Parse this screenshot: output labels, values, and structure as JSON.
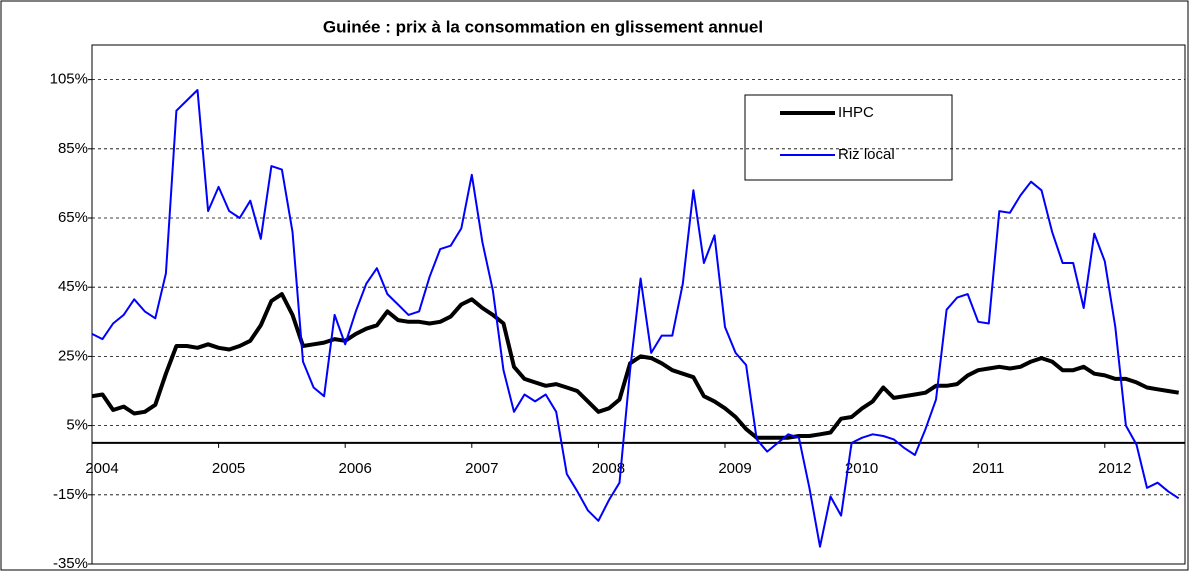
{
  "chart_data": {
    "type": "line",
    "title": "Guinée : prix à la consommation en glissement annuel",
    "categories": [
      "2004",
      null,
      null,
      null,
      null,
      null,
      null,
      null,
      null,
      null,
      null,
      null,
      "2005",
      null,
      null,
      null,
      null,
      null,
      null,
      null,
      null,
      null,
      null,
      null,
      "2006",
      null,
      null,
      null,
      null,
      null,
      null,
      null,
      null,
      null,
      null,
      null,
      "2007",
      null,
      null,
      null,
      null,
      null,
      null,
      null,
      null,
      null,
      null,
      null,
      "2008",
      null,
      null,
      null,
      null,
      null,
      null,
      null,
      null,
      null,
      null,
      null,
      "2009",
      null,
      null,
      null,
      null,
      null,
      null,
      null,
      null,
      null,
      null,
      null,
      "2010",
      null,
      null,
      null,
      null,
      null,
      null,
      null,
      null,
      null,
      null,
      null,
      "2011",
      null,
      null,
      null,
      null,
      null,
      null,
      null,
      null,
      null,
      null,
      null,
      "2012",
      null,
      null,
      null,
      null,
      null,
      null,
      null
    ],
    "series": [
      {
        "name": "IHPC",
        "color": "#000000",
        "width": 4,
        "values": [
          13.5,
          14,
          9.5,
          10.5,
          8.5,
          9,
          11,
          20,
          28,
          28,
          27.5,
          28.5,
          27.5,
          27,
          28,
          29.5,
          34,
          41,
          43,
          37,
          28,
          28.5,
          29,
          30,
          29.5,
          31.5,
          33,
          34,
          38,
          35.5,
          35,
          35,
          34.5,
          35,
          36.5,
          40,
          41.5,
          39,
          37,
          34.5,
          22,
          18.5,
          17.5,
          16.5,
          17,
          16,
          15,
          12,
          9,
          10,
          12.5,
          23,
          25,
          24.5,
          23,
          21,
          20,
          19,
          13.5,
          12,
          10,
          7.5,
          4,
          1.5,
          1.5,
          1.5,
          1.5,
          2,
          2,
          2.5,
          3,
          7,
          7.5,
          10,
          12,
          16,
          13,
          13.5,
          14,
          14.5,
          16.5,
          16.5,
          17,
          19.5,
          21,
          21.5,
          22,
          21.5,
          22,
          23.5,
          24.5,
          23.5,
          21,
          21,
          22,
          20,
          19.5,
          18.5,
          18.5,
          17.5,
          16,
          15.5,
          15,
          14.5
        ]
      },
      {
        "name": "Riz local",
        "color": "#0000ff",
        "width": 2,
        "values": [
          31.5,
          30,
          34.5,
          37,
          41.5,
          38,
          36,
          49,
          96,
          99,
          102,
          67,
          74,
          67,
          65,
          70,
          59,
          80,
          79,
          61,
          23.5,
          16,
          13.5,
          37,
          28.5,
          38,
          46,
          50.5,
          43,
          40,
          37,
          38,
          48,
          56,
          57,
          62,
          77.5,
          58,
          44,
          21,
          9,
          14,
          12,
          14,
          9,
          -9,
          -14,
          -19.5,
          -22.5,
          -16.5,
          -11.5,
          21,
          47.5,
          26,
          31,
          31,
          46,
          73,
          52,
          60,
          33.5,
          26,
          22.5,
          1,
          -2.5,
          0,
          2.5,
          1.5,
          -13,
          -30,
          -15.5,
          -21,
          0,
          1.5,
          2.5,
          2,
          1,
          -1.5,
          -3.5,
          4,
          12.5,
          38.5,
          42,
          43,
          35,
          34.5,
          67,
          66.5,
          71.5,
          75.5,
          73,
          61,
          52,
          52,
          39,
          60.5,
          52.5,
          33.5,
          5,
          -0.5,
          -13,
          -11.5,
          -14,
          -16
        ]
      }
    ],
    "ylim": [
      -35,
      115
    ],
    "yticks": [
      {
        "value": -35,
        "label": "-35%"
      },
      {
        "value": -15,
        "label": "-15%"
      },
      {
        "value": 5,
        "label": "5%"
      },
      {
        "value": 25,
        "label": "25%"
      },
      {
        "value": 45,
        "label": "45%"
      },
      {
        "value": 65,
        "label": "65%"
      },
      {
        "value": 85,
        "label": "85%"
      },
      {
        "value": 105,
        "label": "105%"
      }
    ],
    "grid": true
  }
}
